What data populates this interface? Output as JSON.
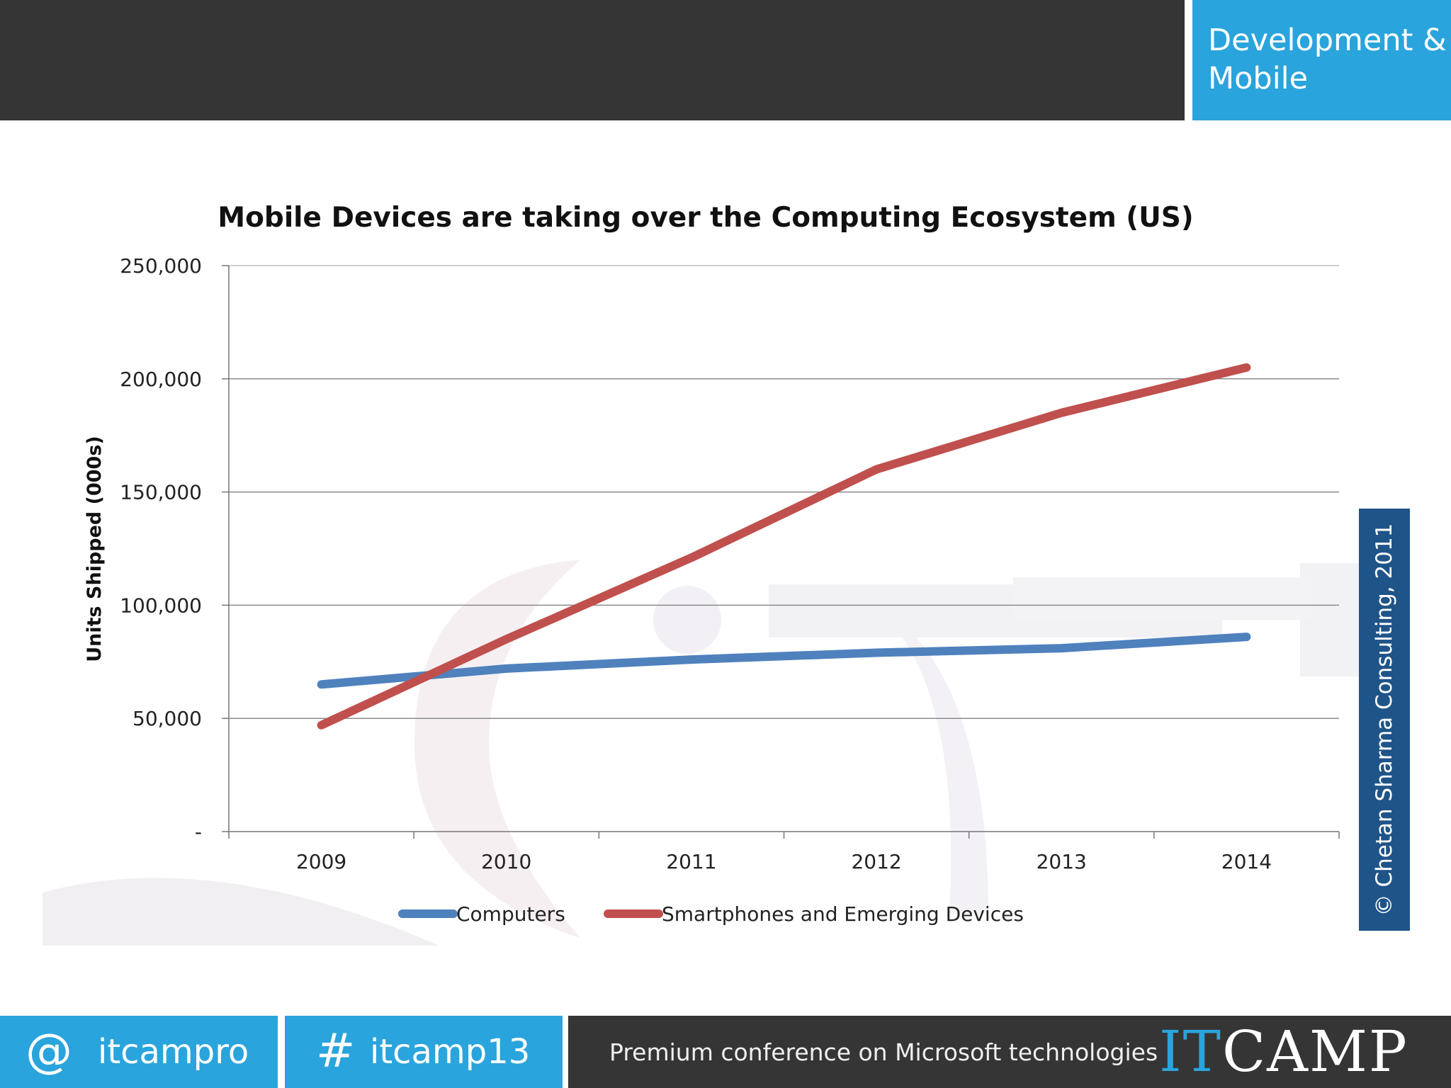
{
  "header": {
    "tag_line1": "Development &",
    "tag_line2": "Mobile"
  },
  "colors": {
    "accent": "#2aa4dc",
    "dark": "#353535",
    "badge": "#1f5489",
    "computers": "#4f81bd",
    "smartphones": "#c0504d"
  },
  "side_badge": "© Chetan Sharma Consulting, 2011",
  "footer": {
    "at_symbol": "@",
    "handle": "itcampro",
    "hash_symbol": "#",
    "hashtag": "itcamp13",
    "tagline": "Premium conference on Microsoft technologies",
    "logo_it": "IT",
    "logo_camp": "CAMP"
  },
  "chart_data": {
    "type": "line",
    "title": "Mobile Devices are taking over the Computing Ecosystem (US)",
    "ylabel": "Units Shipped (000s)",
    "xlabel": "",
    "categories": [
      "2009",
      "2010",
      "2011",
      "2012",
      "2013",
      "2014"
    ],
    "y_ticks": [
      "-",
      "50,000",
      "100,000",
      "150,000",
      "200,000",
      "250,000"
    ],
    "ylim": [
      0,
      250000
    ],
    "grid": true,
    "legend_position": "bottom",
    "series": [
      {
        "name": "Computers",
        "values": [
          65000,
          72000,
          76000,
          79000,
          81000,
          86000
        ]
      },
      {
        "name": "Smartphones and Emerging Devices",
        "values": [
          47000,
          85000,
          121000,
          160000,
          185000,
          205000
        ]
      }
    ]
  }
}
